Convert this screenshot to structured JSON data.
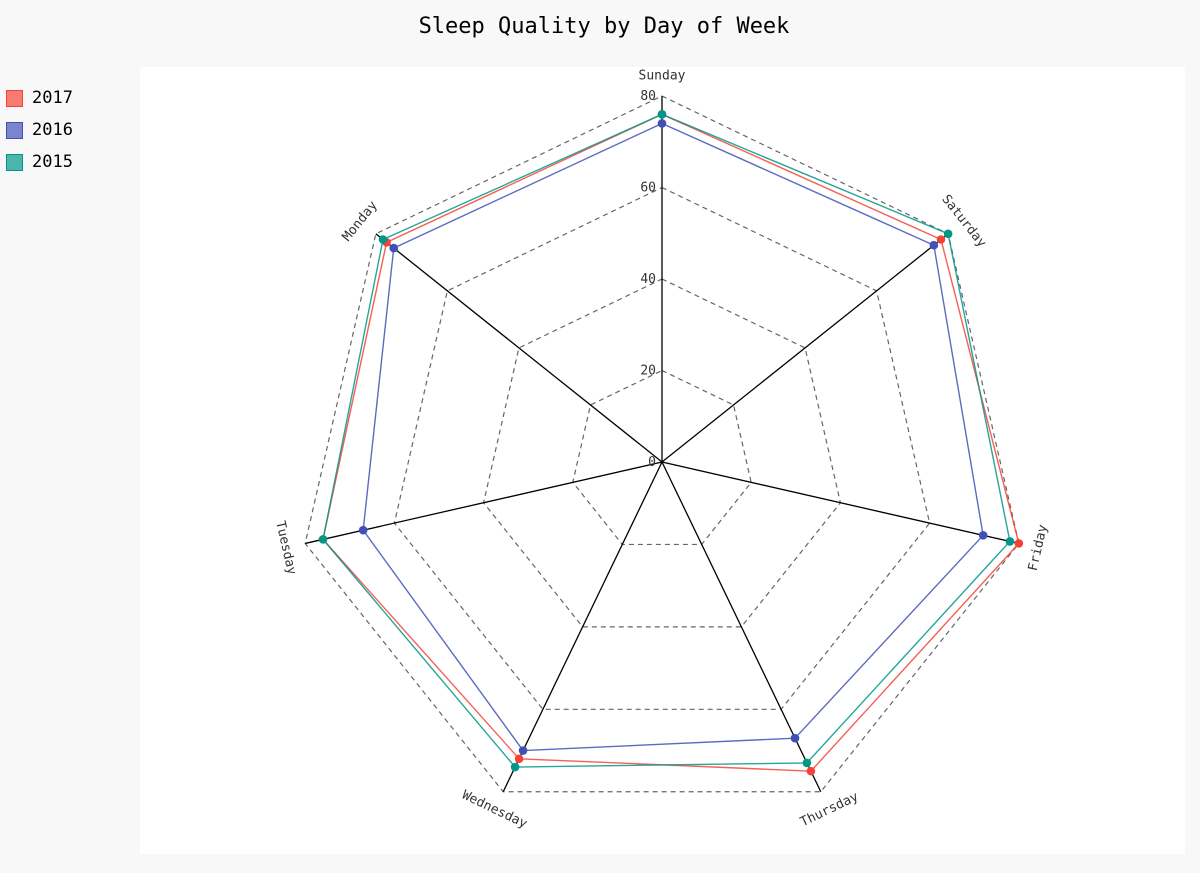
{
  "chart_data": {
    "type": "radar",
    "title": "Sleep Quality by Day of Week",
    "categories": [
      "Sunday",
      "Saturday",
      "Friday",
      "Thursday",
      "Wednesday",
      "Tuesday",
      "Monday"
    ],
    "rlim": [
      0,
      80
    ],
    "ticks": [
      0,
      20,
      40,
      60,
      80
    ],
    "grid": true,
    "legend_position": "top-left",
    "series": [
      {
        "name": "2017",
        "color": "#f44336",
        "swatch": "#f77b72",
        "values": [
          76,
          78,
          80,
          75,
          72,
          76,
          77
        ]
      },
      {
        "name": "2016",
        "color": "#3f51b5",
        "swatch": "#7986cb",
        "values": [
          74,
          76,
          72,
          67,
          70,
          67,
          75
        ]
      },
      {
        "name": "2015",
        "color": "#009688",
        "swatch": "#4db6ac",
        "values": [
          76,
          80,
          78,
          73,
          74,
          76,
          78
        ]
      }
    ]
  }
}
